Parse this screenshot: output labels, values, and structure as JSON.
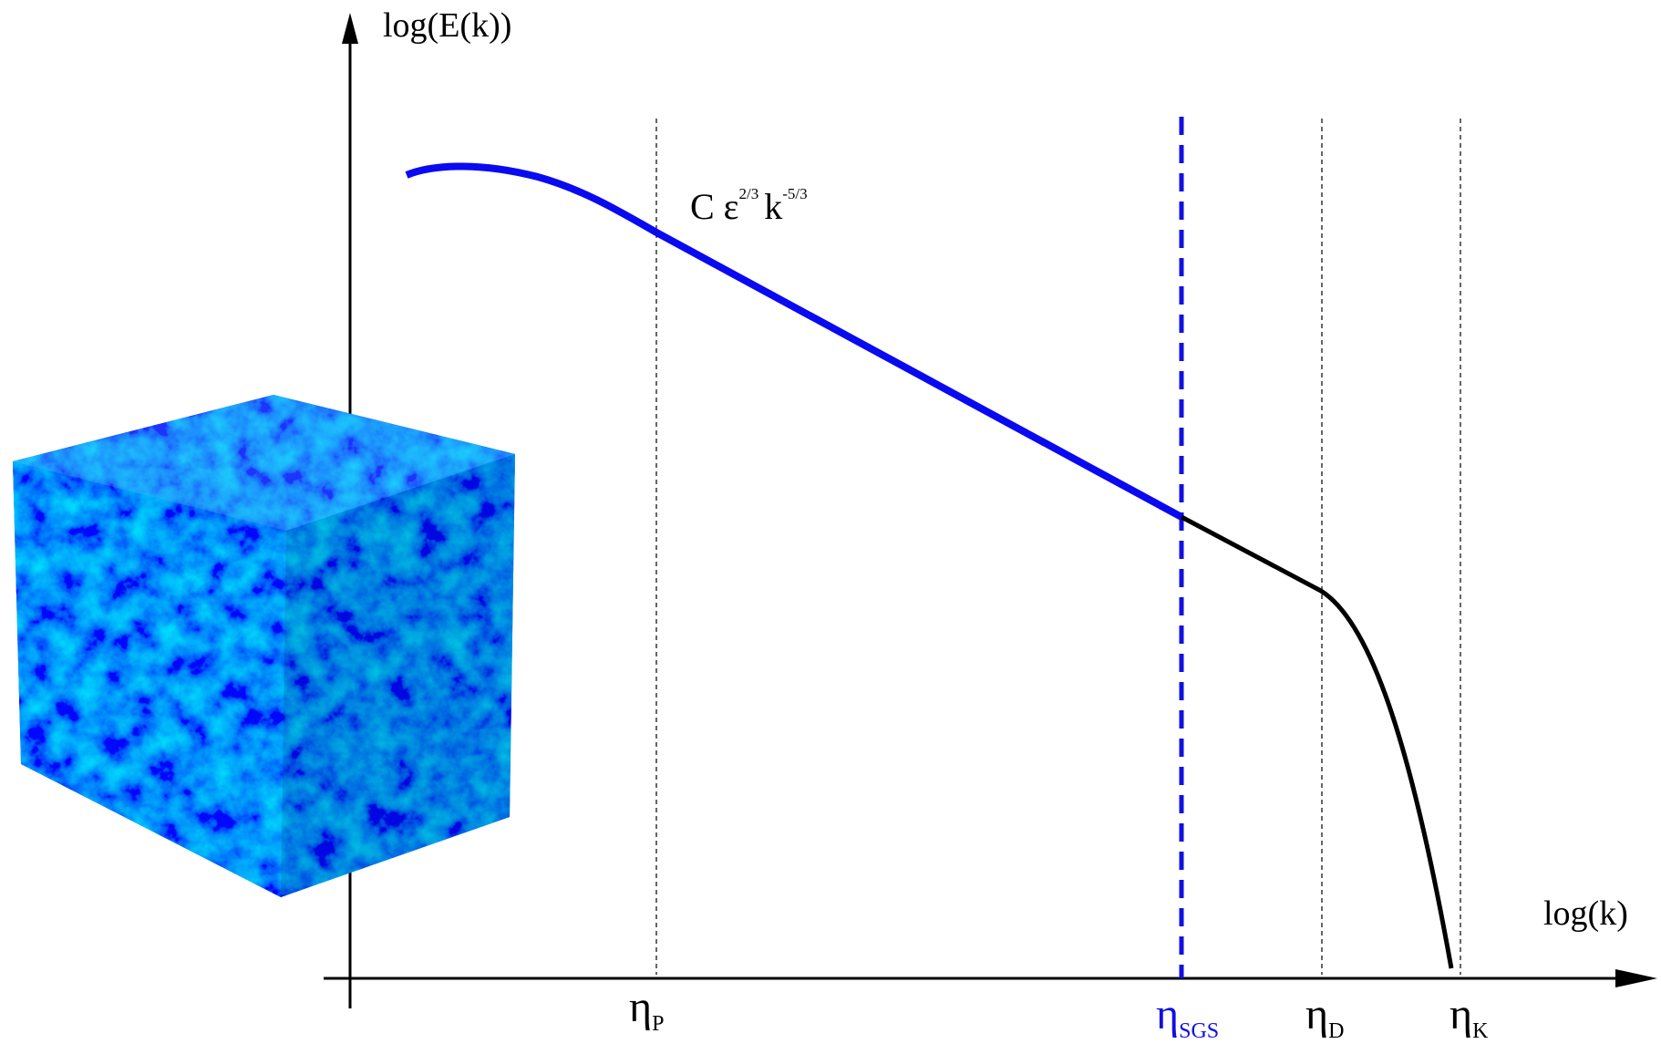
{
  "axes": {
    "y_label": "log(E(k))",
    "x_label": "log(k)"
  },
  "annotation": {
    "base1": "C ε",
    "exp1": "2/3",
    "base2": "k",
    "exp2": "-5/3"
  },
  "markers": [
    {
      "symbol": "η",
      "subscript": "P"
    },
    {
      "symbol": "η",
      "subscript": "SGS"
    },
    {
      "symbol": "η",
      "subscript": "D"
    },
    {
      "symbol": "η",
      "subscript": "K"
    }
  ]
}
